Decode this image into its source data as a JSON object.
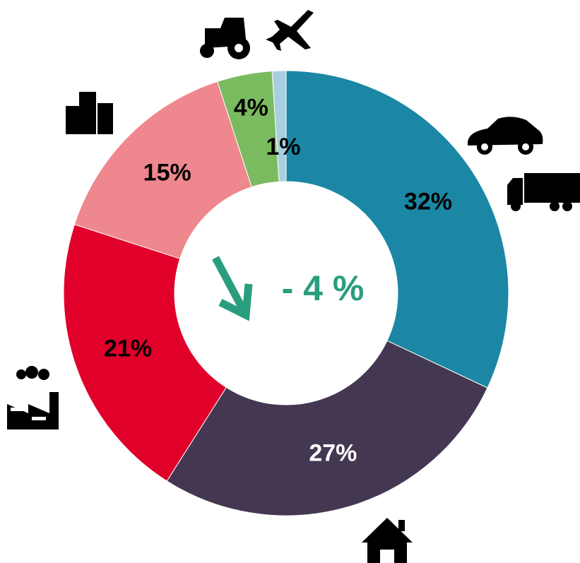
{
  "chart_data": {
    "type": "pie",
    "values": [
      32,
      27,
      21,
      15,
      4,
      1
    ],
    "value_labels": [
      "32%",
      "27%",
      "21%",
      "15%",
      "4%",
      "1%"
    ],
    "colors": [
      "#1b87a4",
      "#433752",
      "#e0002a",
      "#ef878e",
      "#7bbb60",
      "#a8cfe0"
    ],
    "label_colors": [
      "#000000",
      "#ffffff",
      "#000000",
      "#000000",
      "#000000",
      "#000000"
    ],
    "annotation": "- 4 %"
  }
}
